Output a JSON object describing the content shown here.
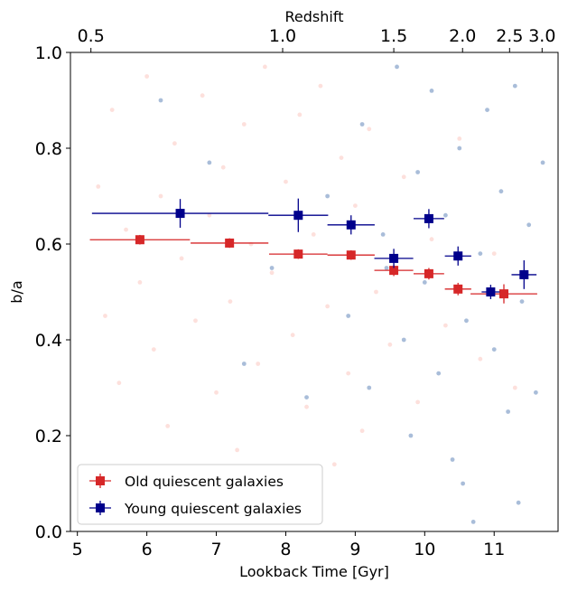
{
  "chart_data": {
    "type": "errorbar",
    "xlabel": "Lookback Time [Gyr]",
    "ylabel": "b/a",
    "x2label": "Redshift",
    "xlim": [
      4.9,
      11.92
    ],
    "ylim": [
      0,
      1
    ],
    "xticks": [
      5,
      6,
      7,
      8,
      9,
      10,
      11
    ],
    "yticks": [
      {
        "value": 0,
        "label": "0.0"
      },
      0.2,
      0.4,
      0.6,
      0.8,
      {
        "value": 1,
        "label": "1.0"
      }
    ],
    "x2ticks": [
      {
        "value": 5.195,
        "label": "0.5"
      },
      {
        "value": 7.955,
        "label": "1.0"
      },
      {
        "value": 9.555,
        "label": "1.5"
      },
      {
        "value": 10.545,
        "label": "2.0"
      },
      {
        "value": 11.222,
        "label": "2.5"
      },
      {
        "value": 11.69,
        "label": "3.0"
      }
    ],
    "legend": "lower left",
    "background": [
      {
        "color": "#fde0dc",
        "x": [
          5.3,
          5.4,
          5.5,
          5.6,
          5.7,
          5.8,
          5.9,
          6.0,
          6.1,
          6.2,
          6.3,
          6.4,
          6.5,
          6.6,
          6.7,
          6.8,
          6.9,
          7.0,
          7.1,
          7.2,
          7.3,
          7.4,
          7.5,
          7.6,
          7.7,
          7.8,
          7.9,
          8.0,
          8.1,
          8.2,
          8.3,
          8.4,
          8.5,
          8.6,
          8.7,
          8.8,
          8.9,
          9.0,
          9.1,
          9.2,
          9.3,
          9.5,
          9.7,
          9.9,
          10.1,
          10.3,
          10.5,
          10.8,
          11.0,
          11.3
        ],
        "values": [
          0.72,
          0.45,
          0.88,
          0.31,
          0.63,
          0.12,
          0.52,
          0.95,
          0.38,
          0.7,
          0.22,
          0.81,
          0.57,
          0.05,
          0.44,
          0.91,
          0.66,
          0.29,
          0.76,
          0.48,
          0.17,
          0.85,
          0.6,
          0.35,
          0.97,
          0.54,
          0.09,
          0.73,
          0.41,
          0.87,
          0.26,
          0.62,
          0.93,
          0.47,
          0.14,
          0.78,
          0.33,
          0.68,
          0.21,
          0.84,
          0.5,
          0.39,
          0.74,
          0.27,
          0.61,
          0.43,
          0.82,
          0.36,
          0.58,
          0.3
        ]
      },
      {
        "color": "#a9bdd9",
        "x": [
          6.2,
          6.9,
          7.4,
          7.8,
          8.3,
          8.6,
          8.9,
          9.1,
          9.2,
          9.4,
          9.6,
          9.7,
          9.8,
          9.9,
          10.0,
          10.1,
          10.2,
          10.3,
          10.4,
          10.5,
          10.6,
          10.7,
          10.8,
          10.9,
          11.0,
          11.1,
          11.2,
          11.3,
          11.4,
          11.5,
          11.6,
          11.7,
          10.55,
          9.45,
          11.35
        ],
        "values": [
          0.9,
          0.77,
          0.35,
          0.55,
          0.28,
          0.7,
          0.45,
          0.85,
          0.3,
          0.62,
          0.97,
          0.4,
          0.2,
          0.75,
          0.52,
          0.92,
          0.33,
          0.66,
          0.15,
          0.8,
          0.44,
          0.02,
          0.58,
          0.88,
          0.38,
          0.71,
          0.25,
          0.93,
          0.48,
          0.64,
          0.29,
          0.77,
          0.1,
          0.55,
          0.06
        ]
      }
    ],
    "series": [
      {
        "name": "Old quiescent galaxies",
        "color": "#d62728",
        "x": [
          5.9,
          7.19,
          8.18,
          8.94,
          9.555,
          10.06,
          10.48,
          11.14
        ],
        "values": [
          0.609,
          0.602,
          0.579,
          0.577,
          0.545,
          0.538,
          0.506,
          0.496
        ],
        "xerr": [
          0.72,
          0.56,
          0.42,
          0.34,
          0.28,
          0.22,
          0.19,
          0.48
        ],
        "yerr": [
          0.01,
          0.01,
          0.01,
          0.01,
          0.012,
          0.012,
          0.013,
          0.02
        ]
      },
      {
        "name": "Young quiescent galaxies",
        "color": "#00008b",
        "x": [
          6.48,
          8.18,
          8.94,
          9.555,
          10.06,
          10.48,
          10.95,
          11.43
        ],
        "values": [
          0.664,
          0.66,
          0.64,
          0.57,
          0.653,
          0.575,
          0.5,
          0.536
        ],
        "xerr": [
          1.27,
          0.43,
          0.34,
          0.28,
          0.22,
          0.19,
          0.13,
          0.18
        ],
        "yerr": [
          0.03,
          0.035,
          0.02,
          0.02,
          0.02,
          0.02,
          0.015,
          0.03
        ]
      }
    ]
  }
}
